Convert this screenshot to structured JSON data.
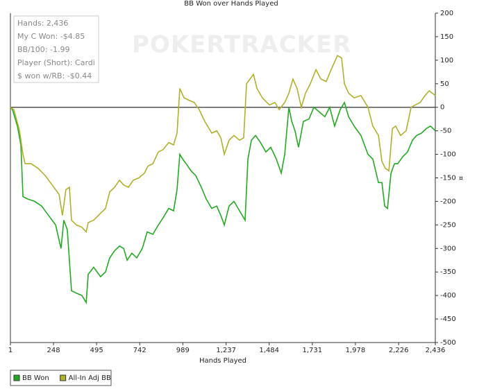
{
  "chart_data": {
    "type": "line",
    "title": "BB Won over Hands Played",
    "xlabel": "Hands Played",
    "ylabel": "¤",
    "watermark": "POKERTRACKER",
    "annotations": [
      "Hands: 2,436",
      "My C Won: -$4.85",
      "BB/100: -1.99",
      "Player (Short): Cardi",
      "$ won w/RB: -$0.44"
    ],
    "xlim": [
      1,
      2436
    ],
    "xticks": [
      1,
      248,
      495,
      742,
      989,
      {
        "value": 1237,
        "label": "1,237"
      },
      {
        "value": 1484,
        "label": "1,484"
      },
      {
        "value": 1731,
        "label": "1,731"
      },
      {
        "value": 1978,
        "label": "1,978"
      },
      {
        "value": 2226,
        "label": "2,226"
      },
      {
        "value": 2436,
        "label": "2,436"
      }
    ],
    "ylim": [
      -500,
      200
    ],
    "yticks": [
      200,
      150,
      100,
      50,
      0,
      -50,
      -100,
      -150,
      -200,
      -250,
      -300,
      -350,
      -400,
      -450,
      -500
    ],
    "hline": 0,
    "legend": "bottom-left",
    "series": [
      {
        "name": "BB Won",
        "color": "#22aa22",
        "x": [
          1,
          13,
          41,
          61,
          73,
          100,
          140,
          180,
          220,
          260,
          291,
          307,
          327,
          351,
          379,
          411,
          435,
          447,
          478,
          518,
          546,
          570,
          598,
          626,
          650,
          670,
          697,
          725,
          757,
          785,
          817,
          849,
          876,
          908,
          936,
          956,
          972,
          988,
          1008,
          1036,
          1063,
          1095,
          1123,
          1155,
          1183,
          1207,
          1227,
          1254,
          1282,
          1314,
          1346,
          1362,
          1382,
          1406,
          1434,
          1465,
          1493,
          1525,
          1553,
          1573,
          1597,
          1613,
          1632,
          1652,
          1680,
          1712,
          1740,
          1771,
          1803,
          1831,
          1859,
          1891,
          1915,
          1939,
          1971,
          2010,
          2050,
          2078,
          2110,
          2130,
          2146,
          2162,
          2182,
          2202,
          2221,
          2249,
          2277,
          2305,
          2329,
          2357,
          2385,
          2408,
          2436
        ],
        "values": [
          0,
          -5,
          -40,
          -80,
          -190,
          -195,
          -200,
          -210,
          -230,
          -250,
          -300,
          -240,
          -260,
          -390,
          -395,
          -400,
          -415,
          -355,
          -340,
          -360,
          -350,
          -320,
          -305,
          -295,
          -300,
          -325,
          -310,
          -320,
          -300,
          -265,
          -270,
          -250,
          -235,
          -215,
          -220,
          -175,
          -100,
          -110,
          -120,
          -135,
          -145,
          -170,
          -195,
          -215,
          -210,
          -230,
          -250,
          -210,
          -200,
          -220,
          -240,
          -110,
          -70,
          -60,
          -75,
          -95,
          -85,
          -110,
          -140,
          -100,
          0,
          -30,
          -50,
          -85,
          -30,
          -25,
          0,
          -10,
          -20,
          0,
          -40,
          -5,
          10,
          -20,
          -40,
          -60,
          -100,
          -110,
          -160,
          -160,
          -210,
          -215,
          -140,
          -120,
          -120,
          -105,
          -95,
          -70,
          -60,
          -55,
          -45,
          -40,
          -50
        ]
      },
      {
        "name": "All-In Adj BB",
        "color": "#b0b02a",
        "x": [
          1,
          21,
          53,
          73,
          85,
          120,
          160,
          200,
          240,
          280,
          299,
          319,
          339,
          351,
          379,
          411,
          435,
          447,
          478,
          518,
          546,
          570,
          598,
          626,
          650,
          677,
          705,
          737,
          769,
          789,
          817,
          849,
          876,
          908,
          936,
          956,
          972,
          996,
          1024,
          1055,
          1083,
          1115,
          1155,
          1183,
          1207,
          1227,
          1254,
          1282,
          1314,
          1338,
          1354,
          1374,
          1394,
          1414,
          1445,
          1485,
          1517,
          1541,
          1573,
          1597,
          1620,
          1644,
          1668,
          1692,
          1720,
          1752,
          1780,
          1811,
          1839,
          1875,
          1899,
          1915,
          1939,
          1971,
          2010,
          2050,
          2078,
          2110,
          2130,
          2150,
          2170,
          2190,
          2209,
          2237,
          2269,
          2297,
          2321,
          2349,
          2377,
          2401,
          2436
        ],
        "values": [
          0,
          -5,
          -50,
          -100,
          -120,
          -120,
          -130,
          -145,
          -165,
          -185,
          -230,
          -175,
          -170,
          -240,
          -250,
          -255,
          -265,
          -245,
          -240,
          -225,
          -215,
          -180,
          -170,
          -155,
          -165,
          -170,
          -155,
          -150,
          -140,
          -125,
          -120,
          -95,
          -90,
          -75,
          -80,
          -55,
          40,
          20,
          15,
          10,
          -5,
          -30,
          -55,
          -50,
          -65,
          -100,
          -70,
          -60,
          -70,
          -65,
          50,
          60,
          70,
          40,
          20,
          5,
          10,
          -5,
          10,
          30,
          60,
          40,
          0,
          30,
          50,
          80,
          60,
          55,
          80,
          110,
          105,
          50,
          30,
          20,
          25,
          0,
          -40,
          -60,
          -115,
          -130,
          -135,
          -45,
          -40,
          -60,
          -50,
          0,
          5,
          10,
          25,
          35,
          25
        ]
      }
    ]
  }
}
